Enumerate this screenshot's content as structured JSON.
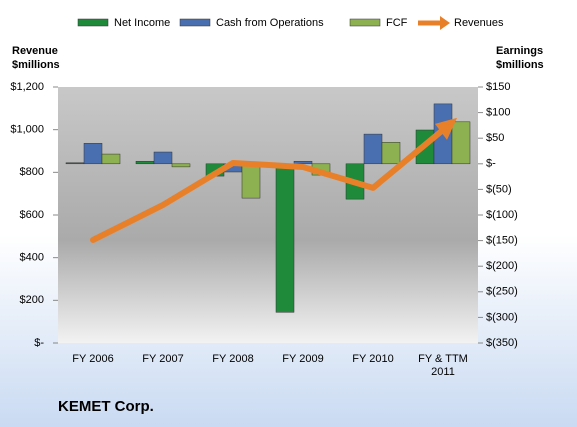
{
  "chart_data": {
    "type": "combo",
    "title": "KEMET Corp.",
    "y_label": "Revenue $millions",
    "y2_label": "Earnings $millions",
    "categories": [
      "FY 2006",
      "FY 2007",
      "FY 2008",
      "FY 2009",
      "FY 2010",
      "FY & TTM 2011"
    ],
    "series": [
      {
        "name": "Net Income",
        "kind": "bar",
        "axis": "y2",
        "color": "#1e8a3a",
        "values": [
          2,
          5,
          -24,
          -290,
          -69,
          66
        ]
      },
      {
        "name": "Cash from Operations",
        "kind": "bar",
        "axis": "y2",
        "color": "#4a6fb0",
        "values": [
          40,
          23,
          -16,
          5,
          58,
          117
        ]
      },
      {
        "name": "FCF",
        "kind": "bar",
        "axis": "y2",
        "color": "#8db050",
        "values": [
          19,
          -6,
          -67,
          -22,
          42,
          82
        ]
      },
      {
        "name": "Revenues",
        "kind": "line",
        "axis": "y",
        "color": "#e8802a",
        "values": [
          483,
          647,
          844,
          825,
          727,
          999
        ]
      }
    ],
    "ylim": [
      0,
      1200
    ],
    "yticks": [
      {
        "value": 0,
        "label": "$-"
      },
      {
        "value": 200,
        "label": "$200"
      },
      {
        "value": 400,
        "label": "$400"
      },
      {
        "value": 600,
        "label": "$600"
      },
      {
        "value": 800,
        "label": "$800"
      },
      {
        "value": 1000,
        "label": "$1,000"
      },
      {
        "value": 1200,
        "label": "$1,200"
      }
    ],
    "y2lim": [
      -350,
      150
    ],
    "y2ticks": [
      {
        "value": -350,
        "label": "$(350)"
      },
      {
        "value": -300,
        "label": "$(300)"
      },
      {
        "value": -250,
        "label": "$(250)"
      },
      {
        "value": -200,
        "label": "$(200)"
      },
      {
        "value": -150,
        "label": "$(150)"
      },
      {
        "value": -100,
        "label": "$(100)"
      },
      {
        "value": -50,
        "label": "$(50)"
      },
      {
        "value": 0,
        "label": "$-"
      },
      {
        "value": 50,
        "label": "$50"
      },
      {
        "value": 100,
        "label": "$100"
      },
      {
        "value": 150,
        "label": "$150"
      }
    ]
  }
}
